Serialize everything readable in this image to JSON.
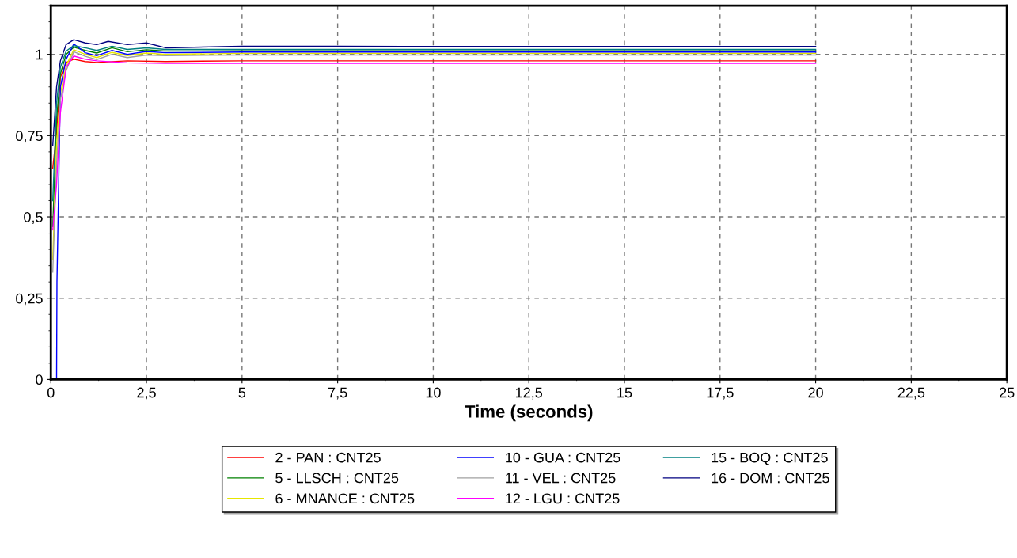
{
  "chart_data": {
    "type": "line",
    "xlabel": "Time (seconds)",
    "xlim": [
      0,
      25
    ],
    "ylim": [
      0,
      1.15
    ],
    "xticks": [
      0,
      {
        "value": 2.5,
        "label": "2,5"
      },
      5,
      {
        "value": 7.5,
        "label": "7,5"
      },
      10,
      {
        "value": 12.5,
        "label": "12,5"
      },
      15,
      {
        "value": 17.5,
        "label": "17,5"
      },
      20,
      {
        "value": 22.5,
        "label": "22,5"
      },
      25
    ],
    "yticks": [
      0,
      {
        "value": 0.25,
        "label": "0,25"
      },
      {
        "value": 0.5,
        "label": "0,5"
      },
      {
        "value": 0.75,
        "label": "0,75"
      },
      1
    ],
    "grid": true,
    "legend": "bottom",
    "line_style": "solid",
    "marker": "none",
    "series": [
      {
        "name": "2 - PAN : CNT25",
        "color": "#ff0000",
        "x": [
          0.05,
          0.15,
          0.25,
          0.4,
          0.6,
          0.9,
          1.2,
          2,
          3,
          5,
          10,
          20
        ],
        "values": [
          0.65,
          0.76,
          0.93,
          0.975,
          0.985,
          0.978,
          0.975,
          0.98,
          0.978,
          0.98,
          0.98,
          0.98
        ]
      },
      {
        "name": "5 - LLSCH : CNT25",
        "color": "#008000",
        "x": [
          0.05,
          0.15,
          0.25,
          0.4,
          0.6,
          0.9,
          1.2,
          1.6,
          2,
          2.5,
          3,
          5,
          10,
          20
        ],
        "values": [
          0.47,
          0.8,
          0.94,
          1.0,
          1.022,
          1.012,
          1.004,
          1.02,
          1.008,
          1.014,
          1.01,
          1.011,
          1.011,
          1.011
        ]
      },
      {
        "name": "6 - MNANCE : CNT25",
        "color": "#e6e600",
        "x": [
          0.05,
          0.15,
          0.25,
          0.4,
          0.6,
          0.9,
          1.2,
          1.6,
          2,
          2.5,
          3,
          5,
          10,
          20
        ],
        "values": [
          0.37,
          0.72,
          0.88,
          0.965,
          1.014,
          1.0,
          0.99,
          1.006,
          0.996,
          1.004,
          1.0,
          1.003,
          1.003,
          1.003
        ]
      },
      {
        "name": "10 - GUA : CNT25",
        "color": "#0000ff",
        "x": [
          0.15,
          0.16,
          0.25,
          0.4,
          0.6,
          0.9,
          1.2,
          1.6,
          2,
          2.5,
          3,
          5,
          10,
          20
        ],
        "values": [
          0,
          0.3,
          0.9,
          0.985,
          1.032,
          1.005,
          0.996,
          1.012,
          1.0,
          1.009,
          1.005,
          1.007,
          1.007,
          1.007
        ]
      },
      {
        "name": "11 - VEL : CNT25",
        "color": "#a0a0a0",
        "x": [
          0.05,
          0.15,
          0.25,
          0.4,
          0.6,
          0.9,
          1.2,
          1.6,
          2,
          2.5,
          3,
          5,
          10,
          20
        ],
        "values": [
          0.33,
          0.66,
          0.86,
          0.95,
          1.008,
          0.994,
          0.984,
          1.0,
          0.99,
          0.998,
          0.996,
          0.998,
          0.998,
          0.998
        ]
      },
      {
        "name": "12 - LGU : CNT25",
        "color": "#ff00ff",
        "x": [
          0.05,
          0.15,
          0.25,
          0.4,
          0.6,
          0.9,
          1.2,
          2,
          3,
          5,
          10,
          20
        ],
        "values": [
          0.46,
          0.6,
          0.82,
          0.96,
          0.995,
          0.985,
          0.98,
          0.974,
          0.972,
          0.972,
          0.972,
          0.972
        ]
      },
      {
        "name": "15 - BOQ : CNT25",
        "color": "#008080",
        "x": [
          0.05,
          0.15,
          0.25,
          0.4,
          0.6,
          0.9,
          1.2,
          1.6,
          2,
          2.5,
          3,
          5,
          10,
          20
        ],
        "values": [
          0.55,
          0.85,
          0.96,
          1.01,
          1.027,
          1.02,
          1.012,
          1.025,
          1.015,
          1.02,
          1.015,
          1.015,
          1.015,
          1.015
        ]
      },
      {
        "name": "16 - DOM : CNT25",
        "color": "#000080",
        "x": [
          0.05,
          0.15,
          0.25,
          0.4,
          0.6,
          0.9,
          1.2,
          1.5,
          2,
          2.5,
          3,
          5,
          7.5,
          10,
          20
        ],
        "values": [
          0.72,
          0.9,
          0.98,
          1.03,
          1.045,
          1.035,
          1.03,
          1.04,
          1.03,
          1.035,
          1.02,
          1.025,
          1.025,
          1.024,
          1.024
        ]
      }
    ]
  }
}
